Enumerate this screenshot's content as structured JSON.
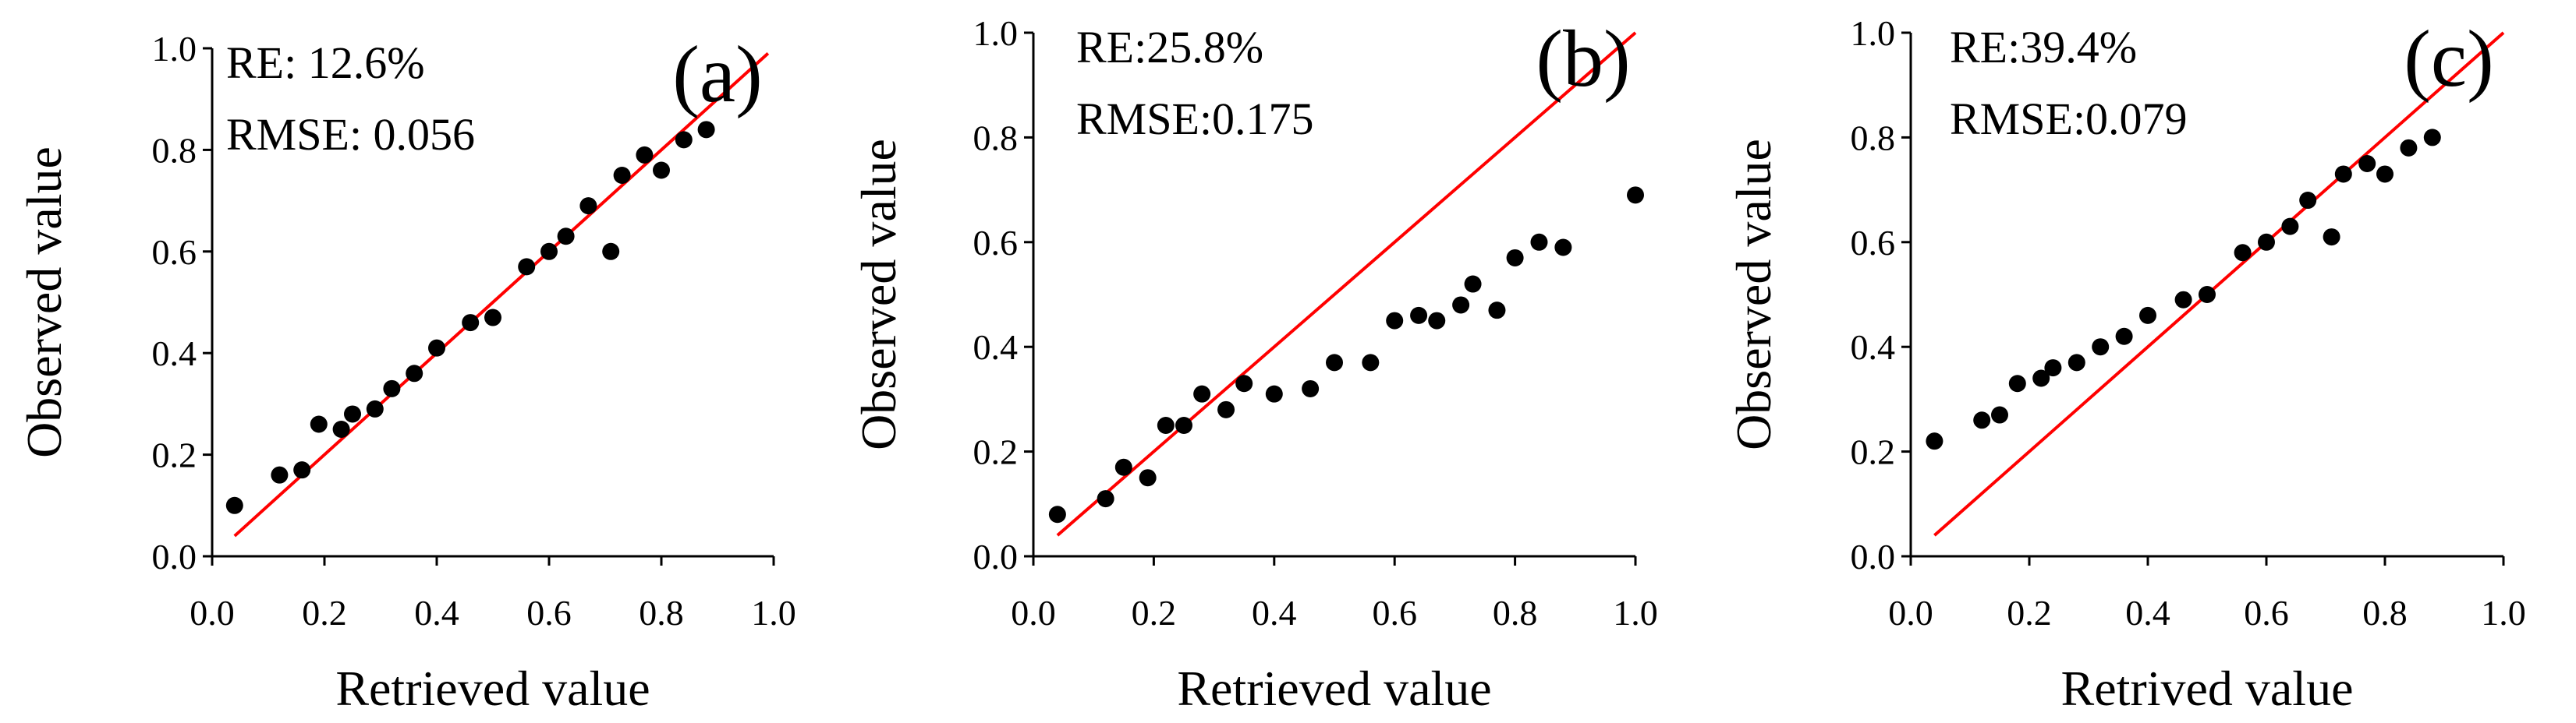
{
  "figure": {
    "axis_color": "#000000",
    "line_color": "#ff0000",
    "point_color": "#000000"
  },
  "chart_data": [
    {
      "type": "scatter",
      "panel_label": "(a)",
      "title": "",
      "xlabel": "Retrieved value",
      "ylabel": "Observed value",
      "xlim": [
        0,
        1
      ],
      "ylim": [
        0,
        1
      ],
      "xticks": [
        "0.0",
        "0.2",
        "0.4",
        "0.6",
        "0.8",
        "1.0"
      ],
      "yticks": [
        "0.0",
        "0.2",
        "0.4",
        "0.6",
        "0.8",
        "1.0"
      ],
      "annotations": [
        "RE: 12.6%",
        "RMSE: 0.056"
      ],
      "reference_line": {
        "name": "1:1 line",
        "x": [
          0.04,
          0.99
        ],
        "y": [
          0.04,
          0.99
        ]
      },
      "series": [
        {
          "name": "samples",
          "x": [
            0.04,
            0.12,
            0.16,
            0.19,
            0.23,
            0.25,
            0.29,
            0.32,
            0.36,
            0.4,
            0.46,
            0.5,
            0.56,
            0.6,
            0.63,
            0.67,
            0.71,
            0.73,
            0.77,
            0.8,
            0.84,
            0.88
          ],
          "y": [
            0.1,
            0.16,
            0.17,
            0.26,
            0.25,
            0.28,
            0.29,
            0.33,
            0.36,
            0.41,
            0.46,
            0.47,
            0.57,
            0.6,
            0.63,
            0.69,
            0.6,
            0.75,
            0.79,
            0.76,
            0.82,
            0.84
          ]
        }
      ]
    },
    {
      "type": "scatter",
      "panel_label": "(b)",
      "title": "",
      "xlabel": "Retrieved value",
      "ylabel": "Observed value",
      "xlim": [
        0,
        1
      ],
      "ylim": [
        0,
        1
      ],
      "xticks": [
        "0.0",
        "0.2",
        "0.4",
        "0.6",
        "0.8",
        "1.0"
      ],
      "yticks": [
        "0.0",
        "0.2",
        "0.4",
        "0.6",
        "0.8",
        "1.0"
      ],
      "annotations": [
        "RE:25.8%",
        "RMSE:0.175"
      ],
      "reference_line": {
        "name": "1:1 line",
        "x": [
          0.04,
          1.0
        ],
        "y": [
          0.04,
          1.0
        ]
      },
      "series": [
        {
          "name": "samples",
          "x": [
            0.04,
            0.12,
            0.15,
            0.19,
            0.22,
            0.25,
            0.28,
            0.32,
            0.35,
            0.4,
            0.46,
            0.5,
            0.56,
            0.6,
            0.64,
            0.67,
            0.71,
            0.73,
            0.77,
            0.8,
            0.84,
            0.88,
            1.0
          ],
          "y": [
            0.08,
            0.11,
            0.17,
            0.15,
            0.25,
            0.25,
            0.31,
            0.28,
            0.33,
            0.31,
            0.32,
            0.37,
            0.37,
            0.45,
            0.46,
            0.45,
            0.48,
            0.52,
            0.47,
            0.57,
            0.6,
            0.59,
            0.69
          ]
        }
      ]
    },
    {
      "type": "scatter",
      "panel_label": "(c)",
      "title": "",
      "xlabel": "Retrived value",
      "ylabel": "Observed value",
      "xlim": [
        0,
        1
      ],
      "ylim": [
        0,
        1
      ],
      "xticks": [
        "0.0",
        "0.2",
        "0.4",
        "0.6",
        "0.8",
        "1.0"
      ],
      "yticks": [
        "0.0",
        "0.2",
        "0.4",
        "0.6",
        "0.8",
        "1.0"
      ],
      "annotations": [
        "RE:39.4%",
        "RMSE:0.079"
      ],
      "reference_line": {
        "name": "1:1 line",
        "x": [
          0.04,
          1.0
        ],
        "y": [
          0.04,
          1.0
        ]
      },
      "series": [
        {
          "name": "samples",
          "x": [
            0.04,
            0.12,
            0.15,
            0.18,
            0.22,
            0.24,
            0.28,
            0.32,
            0.36,
            0.4,
            0.46,
            0.5,
            0.56,
            0.6,
            0.64,
            0.67,
            0.71,
            0.73,
            0.77,
            0.8,
            0.84,
            0.88
          ],
          "y": [
            0.22,
            0.26,
            0.27,
            0.33,
            0.34,
            0.36,
            0.37,
            0.4,
            0.42,
            0.46,
            0.49,
            0.5,
            0.58,
            0.6,
            0.63,
            0.68,
            0.61,
            0.73,
            0.75,
            0.73,
            0.78,
            0.8
          ]
        }
      ]
    }
  ]
}
